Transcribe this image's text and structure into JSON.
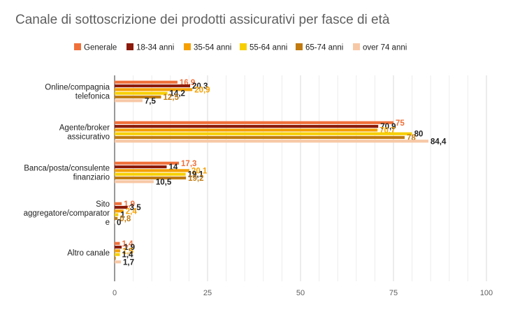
{
  "chart_data": {
    "type": "bar",
    "orientation": "horizontal",
    "title": "Canale di sottoscrizione dei prodotti assicurativi per fasce di età",
    "categories": [
      [
        "Online/compagnia",
        "telefonica"
      ],
      [
        "Agente/broker",
        "assicurativo"
      ],
      [
        "Banca/posta/consulente",
        "finanziario"
      ],
      [
        "Sito",
        "aggregatore/comparator",
        "e"
      ],
      [
        "Altro canale"
      ]
    ],
    "series": [
      {
        "name": "Generale",
        "color": "#f0703a",
        "values": [
          16.9,
          75,
          17.3,
          1.9,
          1.4
        ],
        "labels": [
          "16,9",
          "75",
          "17,3",
          "1,9",
          "1,4"
        ],
        "label_color": "#f0703a"
      },
      {
        "name": "18-34 anni",
        "color": "#8b1a0a",
        "values": [
          20.3,
          70.9,
          14,
          3.5,
          1.9
        ],
        "labels": [
          "20,3",
          "70,9",
          "14",
          "3,5",
          "1,9"
        ],
        "label_color": "#222222"
      },
      {
        "name": "35-54 anni",
        "color": "#f5a000",
        "values": [
          20.9,
          70.7,
          20.1,
          2.4,
          1.5
        ],
        "labels": [
          "20,9",
          "70,7",
          "20,1",
          "2,4",
          "1,5"
        ],
        "label_color": "#f5a000"
      },
      {
        "name": "55-64 anni",
        "color": "#f7cf00",
        "values": [
          14.2,
          80,
          19.1,
          1,
          1.4
        ],
        "labels": [
          "14,2",
          "80",
          "19,1",
          "1",
          "1,4"
        ],
        "label_color": "#222222"
      },
      {
        "name": "65-74 anni",
        "color": "#c07a10",
        "values": [
          12.5,
          78,
          19.2,
          0.8,
          0.3
        ],
        "labels": [
          "12,5",
          "78",
          "19,2",
          "0,8",
          ""
        ],
        "label_color": "#c07a10"
      },
      {
        "name": "over 74 anni",
        "color": "#f7c8a6",
        "values": [
          7.5,
          84.4,
          10.5,
          0,
          1.7
        ],
        "labels": [
          "7,5",
          "84,4",
          "10,5",
          "0",
          "1,7"
        ],
        "label_color": "#222222"
      }
    ],
    "x_ticks": [
      "0",
      "25",
      "50",
      "75",
      "100"
    ],
    "xlim": [
      0,
      100
    ],
    "xlabel": "",
    "ylabel": "",
    "legend_position": "top",
    "grid": "vertical"
  }
}
